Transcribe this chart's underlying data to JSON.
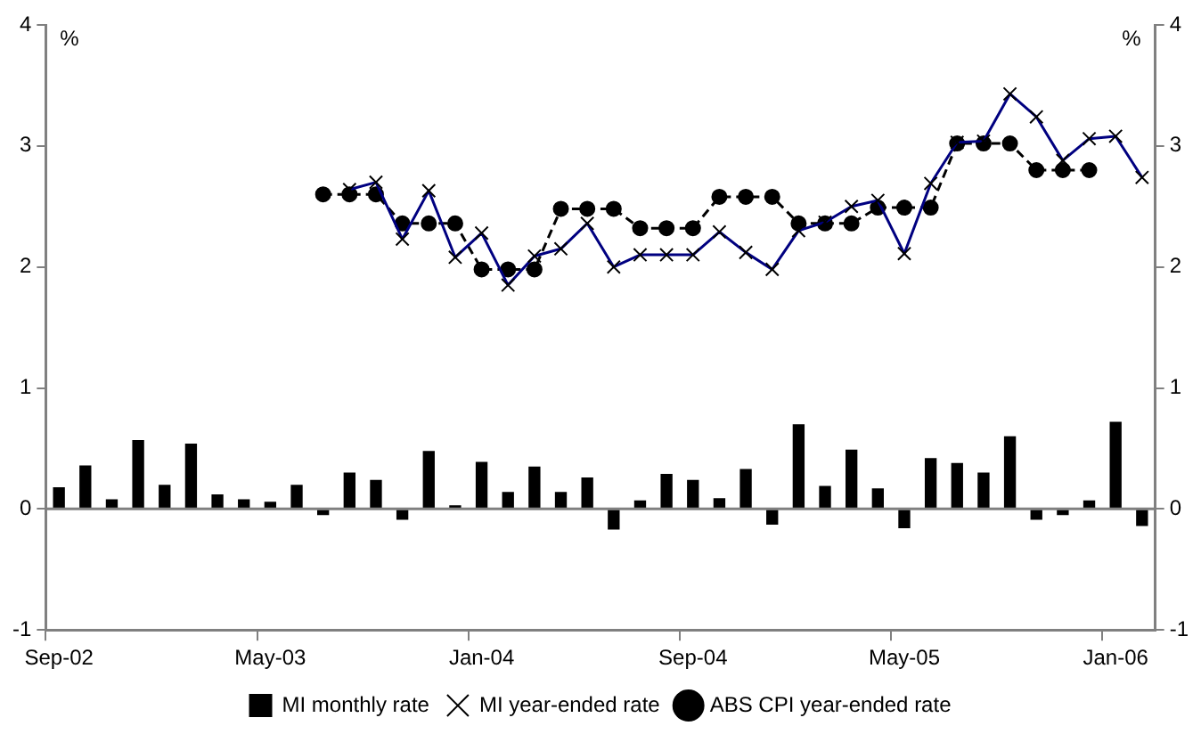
{
  "chart_data": {
    "type": "bar",
    "ylabel": "%",
    "y2label": "%",
    "categories": [
      "Sep-02",
      null,
      null,
      null,
      null,
      null,
      null,
      null,
      "May-03",
      null,
      null,
      null,
      null,
      null,
      null,
      null,
      "Jan-04",
      null,
      null,
      null,
      null,
      null,
      null,
      null,
      "Sep-04",
      null,
      null,
      null,
      null,
      null,
      null,
      null,
      "May-05",
      null,
      null,
      null,
      null,
      null,
      null,
      null,
      "Jan-06",
      null
    ],
    "series": [
      {
        "name": "MI monthly rate",
        "color": "#000000",
        "values": [
          0.18,
          0.36,
          0.08,
          0.57,
          0.2,
          0.54,
          0.12,
          0.08,
          0.06,
          0.2,
          -0.05,
          0.3,
          0.24,
          -0.09,
          0.48,
          0.03,
          0.39,
          0.14,
          0.35,
          0.14,
          0.26,
          -0.17,
          0.07,
          0.29,
          0.24,
          0.09,
          0.33,
          -0.13,
          0.7,
          0.19,
          0.49,
          0.17,
          -0.16,
          0.42,
          0.38,
          0.3,
          0.6,
          -0.09,
          -0.05,
          0.07,
          0.72,
          -0.14
        ]
      },
      {
        "name": "MI year-ended rate",
        "type": "line",
        "color": "#000080",
        "marker": "cross",
        "line_style": "solid",
        "values": [
          null,
          null,
          null,
          null,
          null,
          null,
          null,
          null,
          null,
          null,
          null,
          2.64,
          2.7,
          2.23,
          2.63,
          2.08,
          2.28,
          1.85,
          2.09,
          2.15,
          2.36,
          2.0,
          2.1,
          2.1,
          2.1,
          2.29,
          2.12,
          1.98,
          2.3,
          2.37,
          2.5,
          2.55,
          2.11,
          2.69,
          3.03,
          3.04,
          3.43,
          3.24,
          2.88,
          3.06,
          3.08,
          2.74
        ]
      },
      {
        "name": "ABS CPI year-ended rate",
        "type": "line",
        "color": "#000000",
        "marker": "circle",
        "line_style": "dashed",
        "values": [
          null,
          null,
          null,
          null,
          null,
          null,
          null,
          null,
          null,
          null,
          2.6,
          2.6,
          2.6,
          2.36,
          2.36,
          2.36,
          1.98,
          1.98,
          1.98,
          2.48,
          2.48,
          2.48,
          2.32,
          2.32,
          2.32,
          2.58,
          2.58,
          2.58,
          2.36,
          2.36,
          2.36,
          2.49,
          2.49,
          2.49,
          3.02,
          3.02,
          3.02,
          2.8,
          2.8,
          2.8,
          null,
          null
        ]
      }
    ],
    "ylim": [
      -1,
      4
    ],
    "yticks": [
      -1,
      0,
      1,
      2,
      3,
      4
    ],
    "y2lim": [
      -1,
      4
    ],
    "y2ticks": [
      -1,
      0,
      1,
      2,
      3,
      4
    ],
    "ref_lines": [
      {
        "axis": "y",
        "value": 0,
        "color": "#808080"
      }
    ],
    "grid": false,
    "legend": "bottom"
  }
}
